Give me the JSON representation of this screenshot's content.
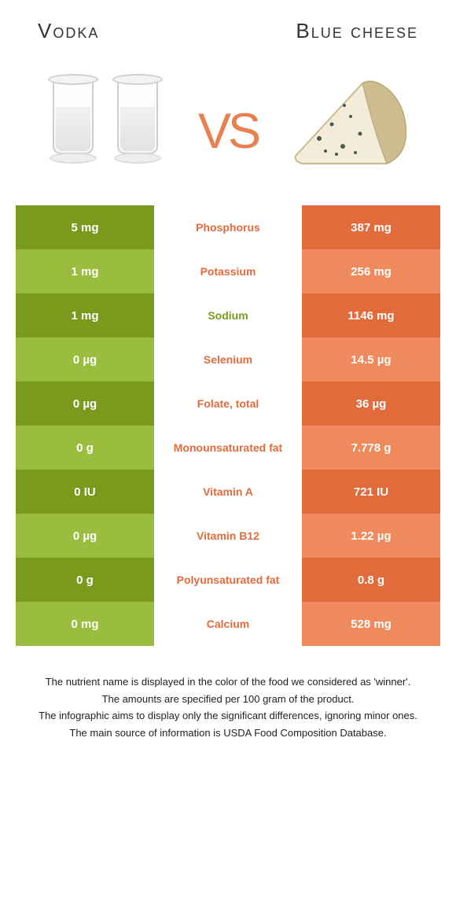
{
  "header": {
    "left_title": "Vodka",
    "right_title": "Blue cheese"
  },
  "vs_text": "vs",
  "colors": {
    "left_dark": "#7a9a1e",
    "left_light": "#9bbd3f",
    "right_dark": "#e26b3b",
    "right_light": "#ee8a5b",
    "label_green": "#7a9a1e",
    "label_orange": "#e26b3b",
    "vs": "#e8804f",
    "background": "#ffffff"
  },
  "table": {
    "rows": [
      {
        "left": "5 mg",
        "label": "Phosphorus",
        "winner": "right",
        "right": "387 mg"
      },
      {
        "left": "1 mg",
        "label": "Potassium",
        "winner": "right",
        "right": "256 mg"
      },
      {
        "left": "1 mg",
        "label": "Sodium",
        "winner": "left",
        "right": "1146 mg"
      },
      {
        "left": "0 µg",
        "label": "Selenium",
        "winner": "right",
        "right": "14.5 µg"
      },
      {
        "left": "0 µg",
        "label": "Folate, total",
        "winner": "right",
        "right": "36 µg"
      },
      {
        "left": "0 g",
        "label": "Monounsaturated fat",
        "winner": "right",
        "right": "7.778 g"
      },
      {
        "left": "0 IU",
        "label": "Vitamin A",
        "winner": "right",
        "right": "721 IU"
      },
      {
        "left": "0 µg",
        "label": "Vitamin B12",
        "winner": "right",
        "right": "1.22 µg"
      },
      {
        "left": "0 g",
        "label": "Polyunsaturated fat",
        "winner": "right",
        "right": "0.8 g"
      },
      {
        "left": "0 mg",
        "label": "Calcium",
        "winner": "right",
        "right": "528 mg"
      }
    ]
  },
  "footer": [
    "The nutrient name is displayed in the color of the food we considered as 'winner'.",
    "The amounts are specified per 100 gram of the product.",
    "The infographic aims to display only the significant differences, ignoring minor ones.",
    "The main source of information is USDA Food Composition Database."
  ]
}
